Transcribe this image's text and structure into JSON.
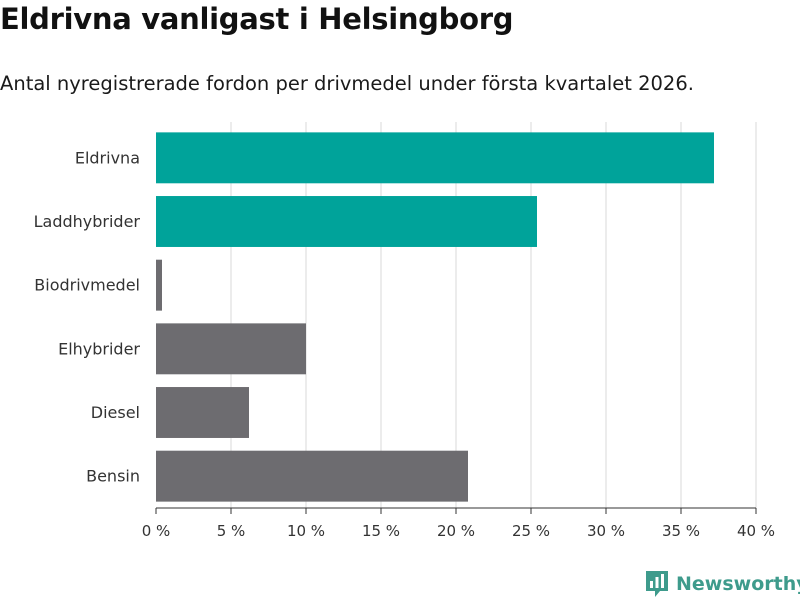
{
  "brand": {
    "name": "Newsworthy",
    "color": "#3e9b8c",
    "icon": "bar-chart-icon"
  },
  "chart_data": {
    "type": "bar",
    "orientation": "horizontal",
    "title": "Eldrivna vanligast i Helsingborg",
    "subtitle": "Antal nyregistrerade fordon per drivmedel under första kvartalet 2026.",
    "categories": [
      "Eldrivna",
      "Laddhybrider",
      "Biodrivmedel",
      "Elhybrider",
      "Diesel",
      "Bensin"
    ],
    "values": [
      37.2,
      25.4,
      0.4,
      10.0,
      6.2,
      20.8
    ],
    "unit": "%",
    "highlight": [
      true,
      true,
      false,
      false,
      false,
      false
    ],
    "colors": {
      "highlight": "#00a39a",
      "default": "#6d6c70",
      "grid": "#d9d9d9",
      "axis": "#333333"
    },
    "xlim": [
      0,
      40
    ],
    "ticks": [
      "0 %",
      "5 %",
      "10 %",
      "15 %",
      "20 %",
      "25 %",
      "30 %",
      "35 %",
      "40 %"
    ],
    "tick_values": [
      0,
      5,
      10,
      15,
      20,
      25,
      30,
      35,
      40
    ],
    "grid": true,
    "xlabel": "",
    "ylabel": ""
  }
}
